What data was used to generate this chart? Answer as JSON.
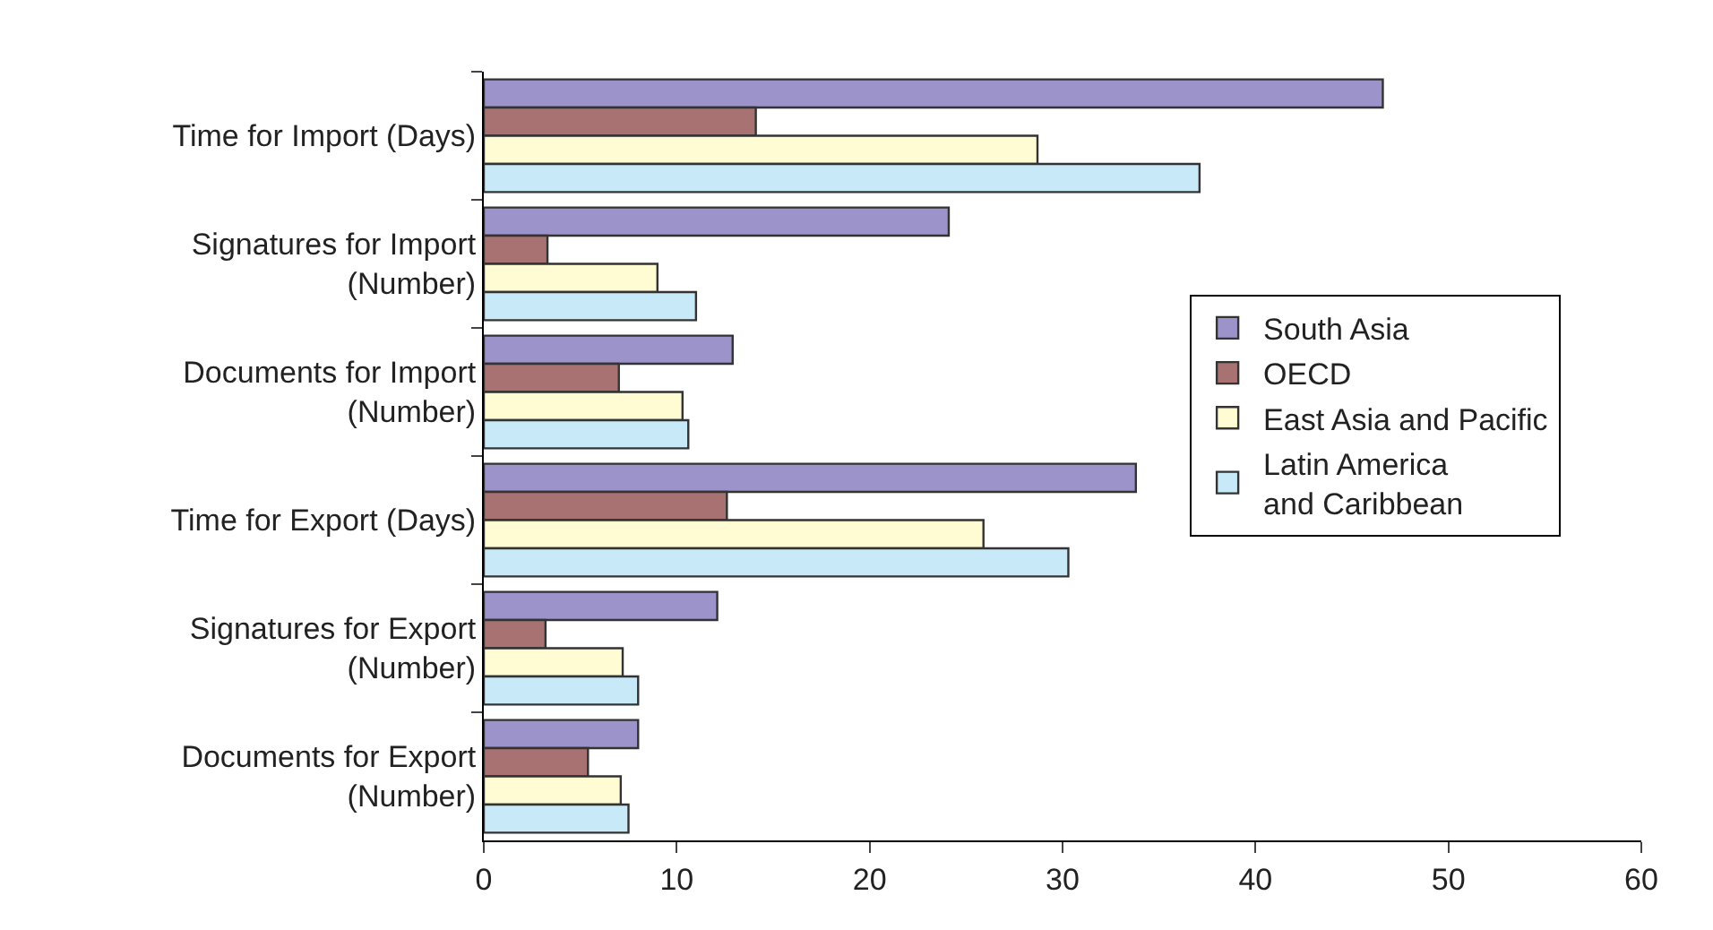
{
  "chart_data": {
    "type": "bar",
    "orientation": "horizontal",
    "categories": [
      "Time for Import (Days)",
      "Signatures for Import\n(Number)",
      "Documents for Import\n(Number)",
      "Time for Export (Days)",
      "Signatures for Export\n(Number)",
      "Documents for Export\n(Number)"
    ],
    "series": [
      {
        "name": "South Asia",
        "color": "#9b93c9",
        "values": [
          46.6,
          24.1,
          12.9,
          33.8,
          12.1,
          8.0
        ]
      },
      {
        "name": "OECD",
        "color": "#a87272",
        "values": [
          14.1,
          3.3,
          7.0,
          12.6,
          3.2,
          5.4
        ]
      },
      {
        "name": "East Asia and Pacific",
        "color": "#fffbd2",
        "values": [
          28.7,
          9.0,
          10.3,
          25.9,
          7.2,
          7.1
        ]
      },
      {
        "name": "Latin America\nand Caribbean",
        "color": "#c8e9f8",
        "values": [
          37.1,
          11.0,
          10.6,
          30.3,
          8.0,
          7.5
        ]
      }
    ],
    "xlim": [
      0,
      60
    ],
    "xticks": [
      0,
      10,
      20,
      30,
      40,
      50,
      60
    ],
    "legend": "right"
  }
}
